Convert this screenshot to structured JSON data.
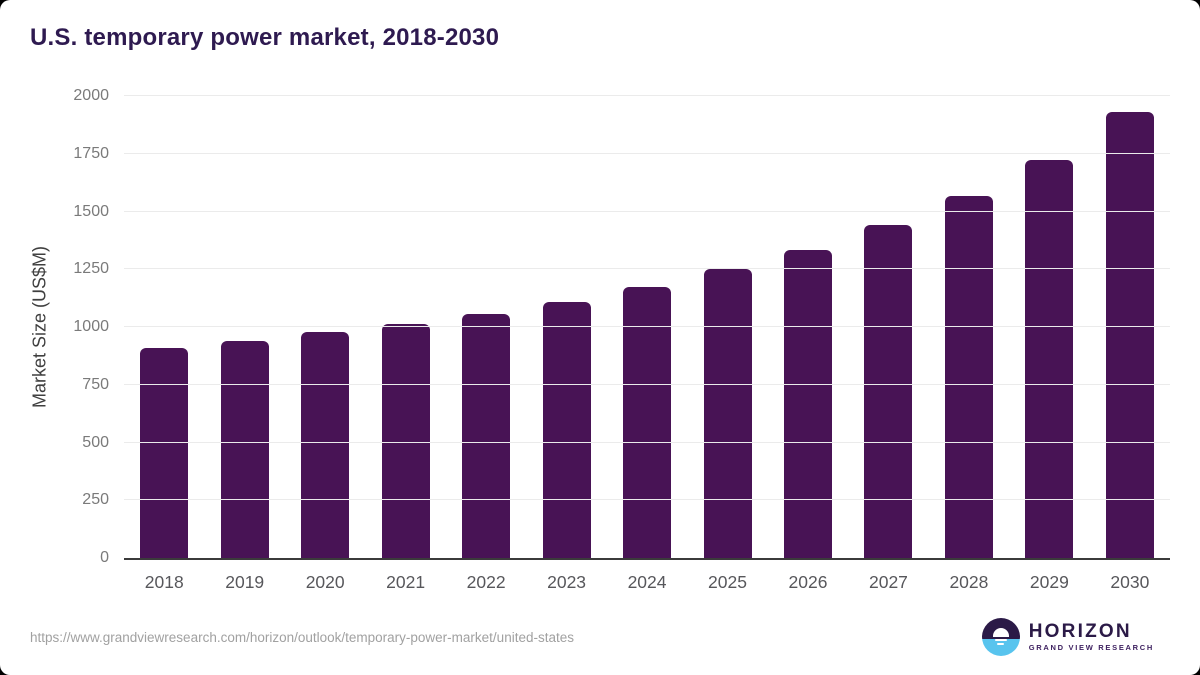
{
  "header": {
    "title": "U.S. temporary power market, 2018-2030",
    "title_color": "#2e1a50"
  },
  "chart_data": {
    "type": "bar",
    "title": "U.S. temporary power market, 2018-2030",
    "categories": [
      "2018",
      "2019",
      "2020",
      "2021",
      "2022",
      "2023",
      "2024",
      "2025",
      "2026",
      "2027",
      "2028",
      "2029",
      "2030"
    ],
    "values": [
      910,
      938,
      977,
      1015,
      1058,
      1110,
      1174,
      1252,
      1334,
      1442,
      1566,
      1725,
      1930
    ],
    "xlabel": "",
    "ylabel": "Market Size (US$M)",
    "ylim": [
      0,
      2000
    ],
    "yticks": [
      0,
      250,
      500,
      750,
      1000,
      1250,
      1500,
      1750,
      2000
    ],
    "grid": true,
    "legend": false,
    "bar_color": "#481355",
    "gridline_color": "#ebebeb",
    "axis_line_color": "#3b3b3b"
  },
  "footer": {
    "source_url": "https://www.grandviewresearch.com/horizon/outlook/temporary-power-market/united-states",
    "logo": {
      "brand": "HORIZON",
      "subbrand": "GRAND VIEW RESEARCH",
      "icon": "horizon-sunset-icon",
      "purple": "#2b1a47",
      "blue": "#58c4ee"
    }
  }
}
